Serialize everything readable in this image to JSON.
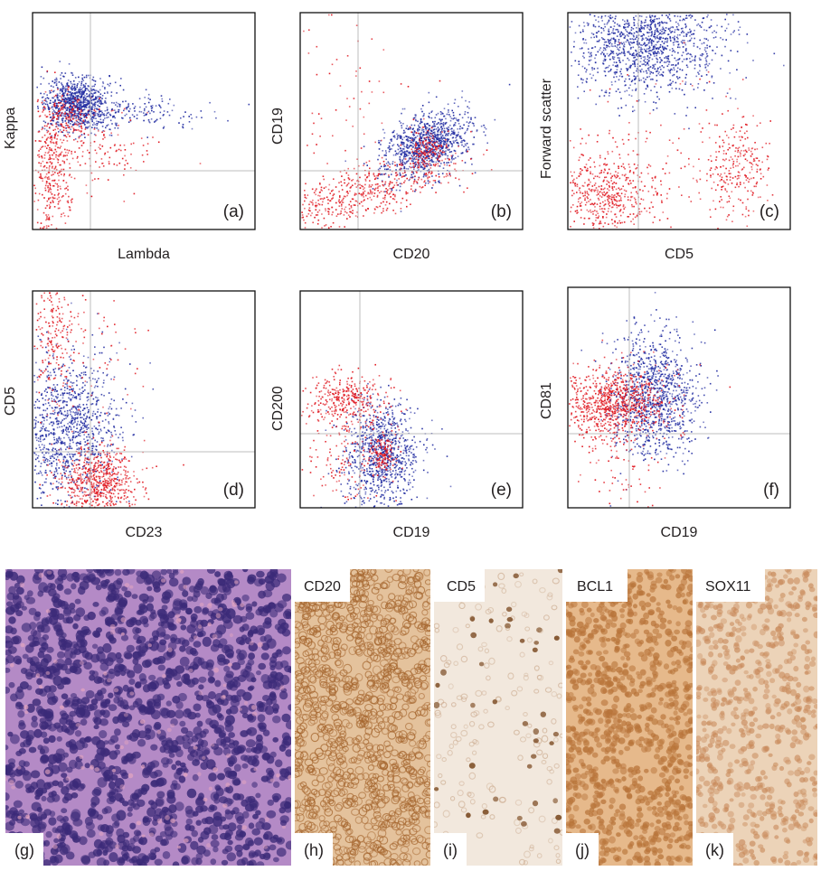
{
  "figure": {
    "colors": {
      "population_neoplastic": "#1f2aa0",
      "population_other": "#e0161e",
      "frame": "#111111",
      "quadrant_line": "#bdbdbd",
      "he_background": "#b98ac9",
      "ihc_brown": "#b8743a"
    },
    "flow_panels": [
      {
        "label": "(a)",
        "xlabel": "Lambda",
        "ylabel": "Kappa"
      },
      {
        "label": "(b)",
        "xlabel": "CD20",
        "ylabel": "CD19"
      },
      {
        "label": "(c)",
        "xlabel": "CD5",
        "ylabel": "Forward scatter"
      },
      {
        "label": "(d)",
        "xlabel": "CD23",
        "ylabel": "CD5"
      },
      {
        "label": "(e)",
        "xlabel": "CD19",
        "ylabel": "CD200"
      },
      {
        "label": "(f)",
        "xlabel": "CD19",
        "ylabel": "CD81"
      }
    ],
    "histology_panels": [
      {
        "label": "(g)",
        "stain": ""
      },
      {
        "label": "(h)",
        "stain": "CD20"
      },
      {
        "label": "(i)",
        "stain": "CD5"
      },
      {
        "label": "(j)",
        "stain": "BCL1"
      },
      {
        "label": "(k)",
        "stain": "SOX11"
      }
    ]
  }
}
